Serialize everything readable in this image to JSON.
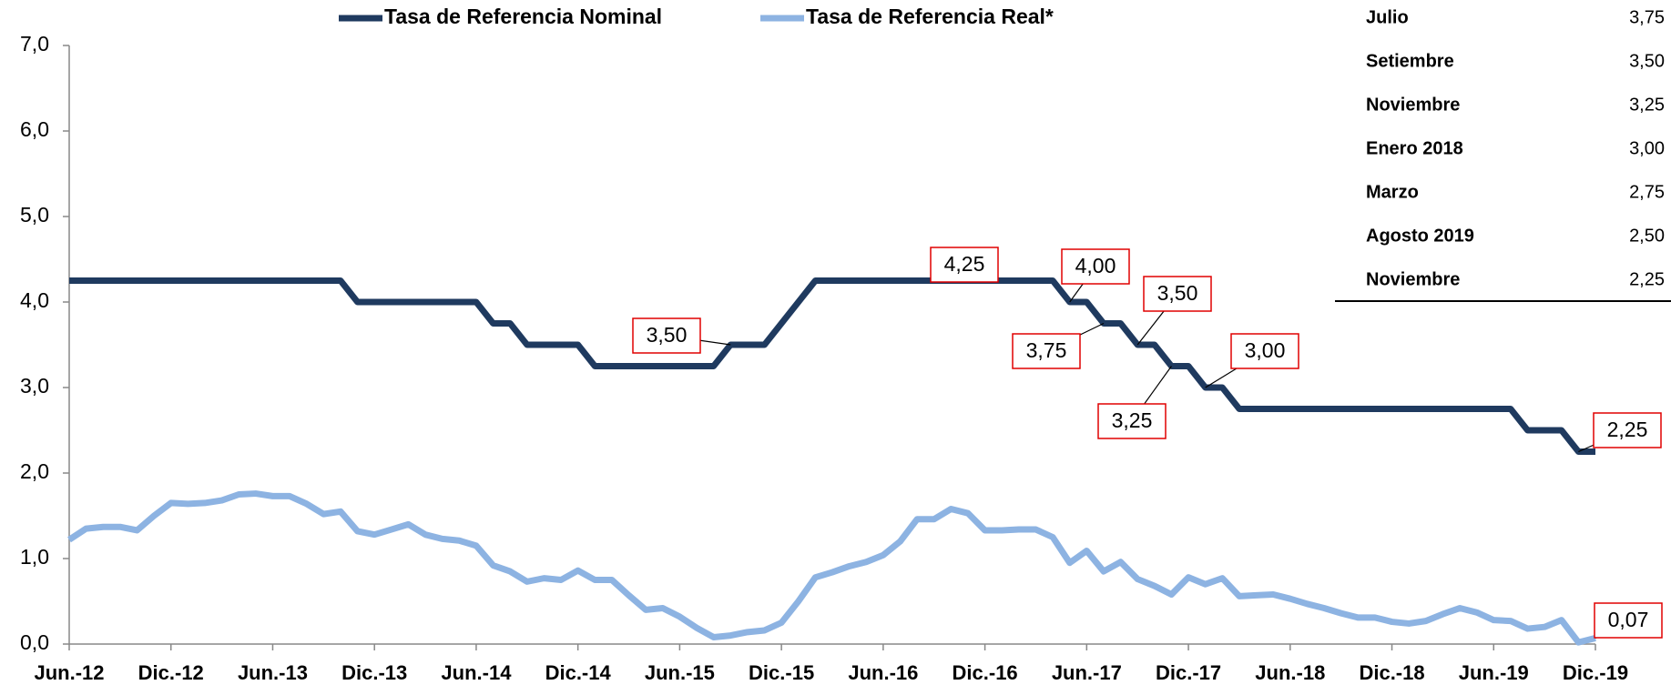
{
  "chart_data": {
    "type": "line",
    "legend": "top",
    "categories": [
      "Jun.-12",
      null,
      null,
      null,
      null,
      null,
      "Dic.-12",
      null,
      null,
      null,
      null,
      null,
      "Jun.-13",
      null,
      null,
      null,
      null,
      null,
      "Dic.-13",
      null,
      null,
      null,
      null,
      null,
      "Jun.-14",
      null,
      null,
      null,
      null,
      null,
      "Dic.-14",
      null,
      null,
      null,
      null,
      null,
      "Jun.-15",
      null,
      null,
      null,
      null,
      null,
      "Dic.-15",
      null,
      null,
      null,
      null,
      null,
      "Jun.-16",
      null,
      null,
      null,
      null,
      null,
      "Dic.-16",
      null,
      null,
      null,
      null,
      null,
      "Jun.-17",
      null,
      null,
      null,
      null,
      null,
      "Dic.-17",
      null,
      null,
      null,
      null,
      null,
      "Jun.-18",
      null,
      null,
      null,
      null,
      null,
      "Dic.-18",
      null,
      null,
      null,
      null,
      null,
      "Jun.-19",
      null,
      null,
      null,
      null,
      null,
      "Dic.-19"
    ],
    "series": [
      {
        "name": "Tasa de Referencia Nominal",
        "color": "#1f3a5f",
        "values": [
          4.25,
          4.25,
          4.25,
          4.25,
          4.25,
          4.25,
          4.25,
          4.25,
          4.25,
          4.25,
          4.25,
          4.25,
          4.25,
          4.25,
          4.25,
          4.25,
          4.25,
          4.0,
          4.0,
          4.0,
          4.0,
          4.0,
          4.0,
          4.0,
          4.0,
          3.75,
          3.75,
          3.5,
          3.5,
          3.5,
          3.5,
          3.25,
          3.25,
          3.25,
          3.25,
          3.25,
          3.25,
          3.25,
          3.25,
          3.5,
          3.5,
          3.5,
          3.75,
          4.0,
          4.25,
          4.25,
          4.25,
          4.25,
          4.25,
          4.25,
          4.25,
          4.25,
          4.25,
          4.25,
          4.25,
          4.25,
          4.25,
          4.25,
          4.25,
          4.0,
          4.0,
          3.75,
          3.75,
          3.5,
          3.5,
          3.25,
          3.25,
          3.0,
          3.0,
          2.75,
          2.75,
          2.75,
          2.75,
          2.75,
          2.75,
          2.75,
          2.75,
          2.75,
          2.75,
          2.75,
          2.75,
          2.75,
          2.75,
          2.75,
          2.75,
          2.75,
          2.5,
          2.5,
          2.5,
          2.25,
          2.25
        ],
        "value_labels": [
          null,
          null,
          null,
          null,
          null,
          null,
          null,
          null,
          null,
          null,
          null,
          null,
          null,
          null,
          null,
          null,
          null,
          null,
          null,
          null,
          null,
          null,
          null,
          null,
          null,
          null,
          null,
          null,
          null,
          null,
          null,
          null,
          null,
          null,
          null,
          null,
          null,
          null,
          null,
          "3,50",
          null,
          null,
          null,
          null,
          null,
          null,
          null,
          null,
          null,
          null,
          null,
          null,
          null,
          "4,25",
          null,
          null,
          null,
          null,
          null,
          "4,00",
          null,
          "3,75",
          null,
          "3,50",
          null,
          "3,25",
          null,
          "3,00",
          null,
          null,
          null,
          null,
          null,
          null,
          null,
          null,
          null,
          null,
          null,
          null,
          null,
          null,
          null,
          null,
          null,
          null,
          null,
          null,
          null,
          "2,25",
          null
        ]
      },
      {
        "name": "Tasa de Referencia Real*",
        "color": "#8db3e2",
        "values": [
          1.22,
          1.35,
          1.37,
          1.37,
          1.33,
          1.5,
          1.65,
          1.64,
          1.65,
          1.68,
          1.75,
          1.76,
          1.73,
          1.73,
          1.64,
          1.52,
          1.55,
          1.32,
          1.28,
          1.34,
          1.4,
          1.28,
          1.23,
          1.21,
          1.15,
          0.92,
          0.85,
          0.73,
          0.77,
          0.75,
          0.86,
          0.75,
          0.75,
          0.57,
          0.4,
          0.42,
          0.32,
          0.19,
          0.08,
          0.1,
          0.14,
          0.16,
          0.25,
          0.5,
          0.78,
          0.84,
          0.91,
          0.96,
          1.04,
          1.2,
          1.46,
          1.46,
          1.58,
          1.53,
          1.33,
          1.33,
          1.34,
          1.34,
          1.25,
          0.95,
          1.09,
          0.85,
          0.96,
          0.76,
          0.68,
          0.58,
          0.78,
          0.7,
          0.77,
          0.56,
          0.57,
          0.58,
          0.53,
          0.47,
          0.42,
          0.36,
          0.31,
          0.31,
          0.26,
          0.24,
          0.27,
          0.35,
          0.42,
          0.37,
          0.28,
          0.27,
          0.18,
          0.2,
          0.28,
          0.02,
          0.07
        ],
        "value_labels": [
          null,
          null,
          null,
          null,
          null,
          null,
          null,
          null,
          null,
          null,
          null,
          null,
          null,
          null,
          null,
          null,
          null,
          null,
          null,
          null,
          null,
          null,
          null,
          null,
          null,
          null,
          null,
          null,
          null,
          null,
          null,
          null,
          null,
          null,
          null,
          null,
          null,
          null,
          null,
          null,
          null,
          null,
          null,
          null,
          null,
          null,
          null,
          null,
          null,
          null,
          null,
          null,
          null,
          null,
          null,
          null,
          null,
          null,
          null,
          null,
          null,
          null,
          null,
          null,
          null,
          null,
          null,
          null,
          null,
          null,
          null,
          null,
          null,
          null,
          null,
          null,
          null,
          null,
          null,
          null,
          null,
          null,
          null,
          null,
          null,
          null,
          null,
          null,
          null,
          null,
          "0,07"
        ]
      }
    ],
    "ylim": [
      0,
      7
    ],
    "yticks": [
      {
        "value": 0,
        "label": "0,0"
      },
      {
        "value": 1,
        "label": "1,0"
      },
      {
        "value": 2,
        "label": "2,0"
      },
      {
        "value": 3,
        "label": "3,0"
      },
      {
        "value": 4,
        "label": "4,0"
      },
      {
        "value": 5,
        "label": "5,0"
      },
      {
        "value": 6,
        "label": "6,0"
      },
      {
        "value": 7,
        "label": "7,0"
      }
    ],
    "grid": false
  },
  "table": {
    "rows": [
      [
        "Julio",
        "3,75"
      ],
      [
        "Setiembre",
        "3,50"
      ],
      [
        "Noviembre",
        "3,25"
      ],
      [
        "Enero 2018",
        "3,00"
      ],
      [
        "Marzo",
        "2,75"
      ],
      [
        "Agosto 2019",
        "2,50"
      ],
      [
        "Noviembre",
        "2,25"
      ]
    ]
  }
}
